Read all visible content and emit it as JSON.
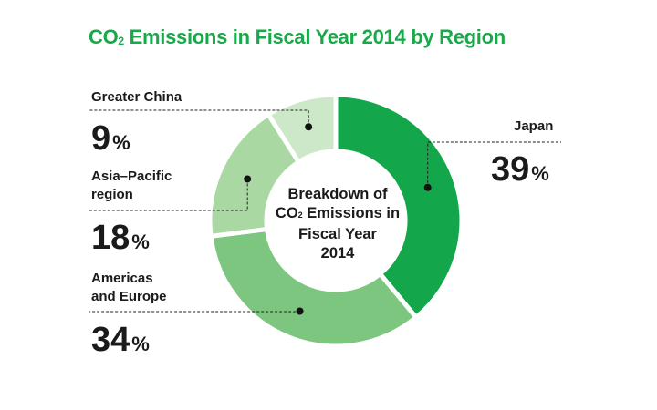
{
  "title": {
    "main": "CO",
    "sub": "2",
    "rest": " Emissions in Fiscal Year 2014 by Region"
  },
  "center": {
    "line1": "Breakdown of",
    "line2_main": "CO",
    "line2_sub": "2",
    "line2_rest": " Emissions in",
    "line3": "Fiscal Year",
    "line4": "2014"
  },
  "chart_data": {
    "type": "pie",
    "variant": "donut",
    "title": "CO2 Emissions in Fiscal Year 2014 by Region",
    "center_label": "Breakdown of CO2 Emissions in Fiscal Year 2014",
    "unit": "%",
    "slices": [
      {
        "label": "Japan",
        "value": 39,
        "value_text": "39",
        "color": "#13a64a"
      },
      {
        "label": "Americas and Europe",
        "value": 34,
        "value_text": "34",
        "color": "#7dc67f"
      },
      {
        "label": "Asia–Pacific region",
        "value": 18,
        "value_text": "18",
        "color": "#a9d8a3"
      },
      {
        "label": "Greater China",
        "value": 9,
        "value_text": "9",
        "color": "#cde8c8"
      }
    ],
    "label_lines": [
      {
        "text": "Greater China"
      },
      {
        "text": "Asia–Pacific"
      },
      {
        "text": "region"
      },
      {
        "text": "Americas"
      },
      {
        "text": "and Europe"
      },
      {
        "text": "Japan"
      }
    ],
    "percent_sign": "%"
  }
}
